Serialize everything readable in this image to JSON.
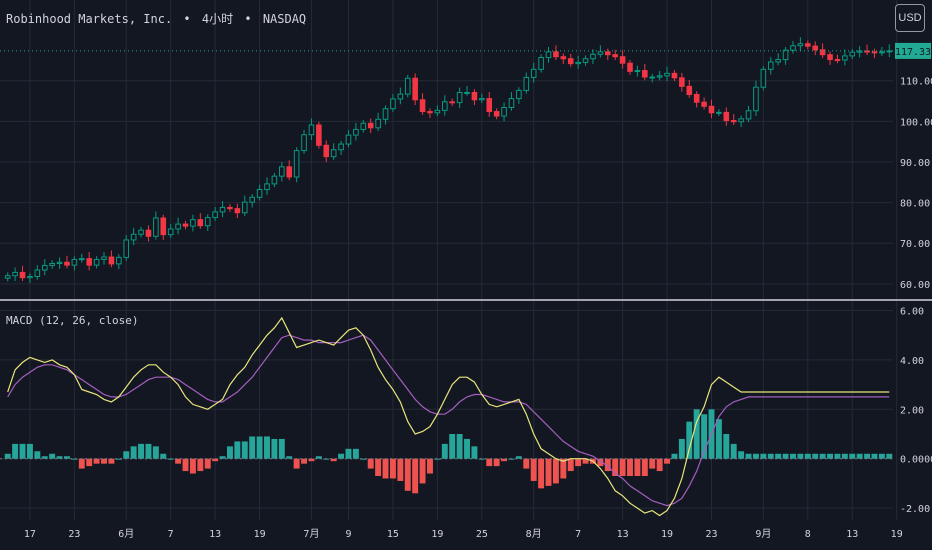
{
  "header": {
    "symbol_name": "Robinhood Markets, Inc.",
    "separator": "•",
    "timeframe": "4小时",
    "exchange": "NASDAQ"
  },
  "currency_button": {
    "label": "USD"
  },
  "macd_panel": {
    "title": "MACD (12, 26, close)"
  },
  "colors": {
    "background": "#131722",
    "grid": "#262a36",
    "up_candle": "#089981",
    "down_candle": "#f23645",
    "macd_line": "#e8e57a",
    "signal_line": "#a45fbf",
    "hist_up": "#26a69a",
    "hist_down": "#ef5350",
    "price_line": "#22ab94",
    "panel_separator": "#d1d4dc"
  },
  "chart_data": [
    {
      "type": "candlestick",
      "price_axis_ticks": [
        "110.00",
        "100.00",
        "90.00",
        "80.00",
        "70.00",
        "60.00"
      ],
      "price_axis_values": [
        110,
        100,
        90,
        80,
        70,
        60
      ],
      "ylim": [
        57,
        121
      ],
      "current_price_label": "117.33",
      "current_price": 117.33,
      "time_axis_labels": [
        "17",
        "23",
        "6月",
        "7",
        "13",
        "19",
        "7月",
        "9",
        "15",
        "19",
        "25",
        "8月",
        "7",
        "13",
        "19",
        "23",
        "9月",
        "8",
        "13",
        "19"
      ],
      "time_axis_index": [
        3,
        9,
        16,
        22,
        28,
        34,
        41,
        46,
        52,
        58,
        64,
        71,
        77,
        83,
        89,
        95,
        102,
        108,
        114,
        120
      ],
      "bar_count": 120,
      "close": [
        62,
        62.8,
        61.5,
        61.8,
        63.4,
        64.5,
        65,
        65.3,
        64.6,
        66,
        66.2,
        64.6,
        66,
        66.6,
        64.9,
        66.5,
        70.8,
        72.2,
        73.2,
        71.7,
        76.2,
        72.1,
        73.5,
        74.7,
        74.2,
        75.8,
        74.3,
        76.3,
        77.7,
        78.8,
        78.5,
        77.5,
        80.1,
        81.3,
        83.2,
        84.6,
        86.5,
        88.8,
        86.3,
        92.8,
        96.7,
        99.1,
        94.1,
        91.3,
        93,
        94.4,
        96.6,
        98,
        99.5,
        98.4,
        100.5,
        103.1,
        105.5,
        106.7,
        110.6,
        105.3,
        102.4,
        102.1,
        102.7,
        104.8,
        104.6,
        107.1,
        107.1,
        105.3,
        105.6,
        102.4,
        101.3,
        103.4,
        105.6,
        107.6,
        110.8,
        112.8,
        115.7,
        117.1,
        115.9,
        115.4,
        114.2,
        114.5,
        115.4,
        116.5,
        117.1,
        116.4,
        115.9,
        114.3,
        112.3,
        112.5,
        110.9,
        110.9,
        111.2,
        111.8,
        110.7,
        108.6,
        106.6,
        104.7,
        103.7,
        102.1,
        102.2,
        100.2,
        99.9,
        100.6,
        102.6,
        108.4,
        112.8,
        114.6,
        115.2,
        117.5,
        118.6,
        119.1,
        118.5,
        117.6,
        116.4,
        115.2,
        115.1,
        116.1,
        117,
        117.3,
        117.1,
        116.9,
        117.1,
        117.33
      ],
      "macd": [
        2.7,
        3.6,
        3.9,
        4.1,
        4.0,
        3.9,
        4.0,
        3.8,
        3.7,
        3.4,
        2.8,
        2.7,
        2.6,
        2.4,
        2.3,
        2.5,
        2.9,
        3.3,
        3.6,
        3.8,
        3.8,
        3.5,
        3.3,
        3.0,
        2.5,
        2.2,
        2.1,
        2.0,
        2.2,
        2.4,
        3.0,
        3.4,
        3.7,
        4.2,
        4.6,
        5.0,
        5.3,
        5.7,
        5.1,
        4.5,
        4.6,
        4.7,
        4.8,
        4.7,
        4.6,
        4.9,
        5.2,
        5.3,
        5.0,
        4.4,
        3.7,
        3.2,
        2.8,
        2.3,
        1.5,
        1.0,
        1.1,
        1.3,
        1.8,
        2.4,
        3.0,
        3.3,
        3.3,
        3.1,
        2.6,
        2.2,
        2.1,
        2.2,
        2.3,
        2.4,
        1.8,
        1.0,
        0.4,
        0.2,
        0.0,
        -0.1,
        0.0,
        0.0,
        0.0,
        -0.1,
        -0.4,
        -0.8,
        -1.3,
        -1.5,
        -1.8,
        -2.0,
        -2.2,
        -2.1,
        -2.3,
        -2.1,
        -1.6,
        -0.8,
        0.4,
        1.5,
        2.1,
        3.0,
        3.3,
        3.1,
        2.9,
        2.7,
        2.7,
        2.7,
        2.7,
        2.7,
        2.7,
        2.7,
        2.7,
        2.7,
        2.7,
        2.7,
        2.7,
        2.7,
        2.7,
        2.7,
        2.7,
        2.7,
        2.7,
        2.7,
        2.7,
        2.7
      ],
      "signal": [
        2.5,
        3.0,
        3.3,
        3.5,
        3.7,
        3.8,
        3.8,
        3.7,
        3.6,
        3.4,
        3.2,
        3.0,
        2.8,
        2.6,
        2.5,
        2.5,
        2.6,
        2.8,
        3.0,
        3.2,
        3.3,
        3.3,
        3.3,
        3.2,
        3.0,
        2.8,
        2.6,
        2.4,
        2.3,
        2.3,
        2.5,
        2.7,
        3.0,
        3.3,
        3.7,
        4.1,
        4.5,
        4.9,
        5.0,
        4.9,
        4.8,
        4.8,
        4.7,
        4.7,
        4.7,
        4.7,
        4.8,
        4.9,
        5.0,
        4.8,
        4.4,
        4.0,
        3.6,
        3.2,
        2.8,
        2.4,
        2.1,
        1.9,
        1.8,
        1.8,
        2.0,
        2.3,
        2.5,
        2.6,
        2.6,
        2.5,
        2.4,
        2.3,
        2.3,
        2.3,
        2.2,
        1.9,
        1.6,
        1.3,
        1.0,
        0.7,
        0.5,
        0.3,
        0.2,
        0.1,
        -0.1,
        -0.3,
        -0.6,
        -0.8,
        -1.1,
        -1.3,
        -1.5,
        -1.7,
        -1.8,
        -1.9,
        -1.8,
        -1.6,
        -1.1,
        -0.5,
        0.3,
        1.0,
        1.7,
        2.1,
        2.3,
        2.4,
        2.5,
        2.5,
        2.5,
        2.5,
        2.5,
        2.5,
        2.5,
        2.5,
        2.5,
        2.5,
        2.5,
        2.5,
        2.5,
        2.5,
        2.5,
        2.5,
        2.5,
        2.5,
        2.5,
        2.5
      ],
      "macd_axis_ticks": [
        "6.00",
        "4.00",
        "2.00",
        "0.0000",
        "-2.00"
      ],
      "macd_axis_values": [
        6,
        4,
        2,
        0,
        -2
      ],
      "macd_ylim": [
        -2.4,
        6.1
      ]
    }
  ]
}
